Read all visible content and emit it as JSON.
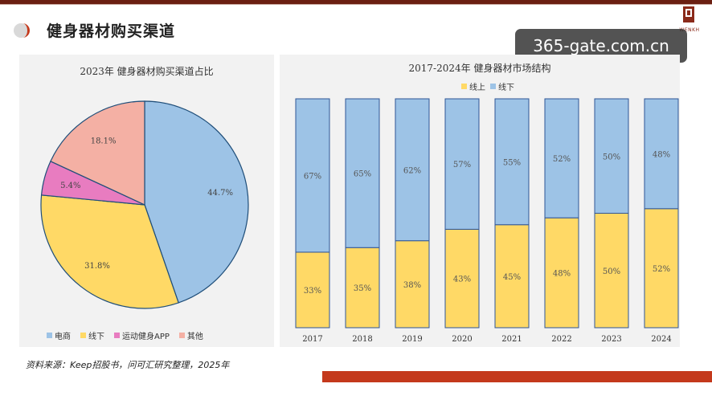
{
  "header": {
    "title": "健身器材购买渠道",
    "brand_text": "WENKH",
    "watermark": "365-gate.com.cn"
  },
  "colors": {
    "blue": "#9dc3e6",
    "yellow": "#ffd966",
    "pink": "#e87cc0",
    "salmon": "#f4b0a4",
    "accent": "#c4391c",
    "dark": "#6b1f12"
  },
  "footer": {
    "source": "资料来源：Keep招股书，问可汇研究整理，2025年"
  },
  "chart_data": [
    {
      "type": "pie",
      "title": "2023年 健身器材购买渠道占比",
      "legend_position": "bottom",
      "slices": [
        {
          "name": "电商",
          "value": 44.7,
          "label": "44.7%",
          "color": "#9dc3e6"
        },
        {
          "name": "线下",
          "value": 31.8,
          "label": "31.8%",
          "color": "#ffd966"
        },
        {
          "name": "运动健身APP",
          "value": 5.4,
          "label": "5.4%",
          "color": "#e87cc0"
        },
        {
          "name": "其他",
          "value": 18.1,
          "label": "18.1%",
          "color": "#f4b0a4"
        }
      ]
    },
    {
      "type": "bar",
      "stacked": true,
      "title": "2017-2024年 健身器材市场结构",
      "legend_position": "top",
      "categories": [
        "2017",
        "2018",
        "2019",
        "2020",
        "2021",
        "2022",
        "2023",
        "2024"
      ],
      "ylim": [
        0,
        100
      ],
      "series": [
        {
          "name": "线上",
          "color": "#ffd966",
          "values": [
            33,
            35,
            38,
            43,
            45,
            48,
            50,
            52
          ],
          "labels": [
            "33%",
            "35%",
            "38%",
            "43%",
            "45%",
            "48%",
            "50%",
            "52%"
          ]
        },
        {
          "name": "线下",
          "color": "#9dc3e6",
          "values": [
            67,
            65,
            62,
            57,
            55,
            52,
            50,
            48
          ],
          "labels": [
            "67%",
            "65%",
            "62%",
            "57%",
            "55%",
            "52%",
            "50%",
            "48%"
          ]
        }
      ]
    }
  ]
}
